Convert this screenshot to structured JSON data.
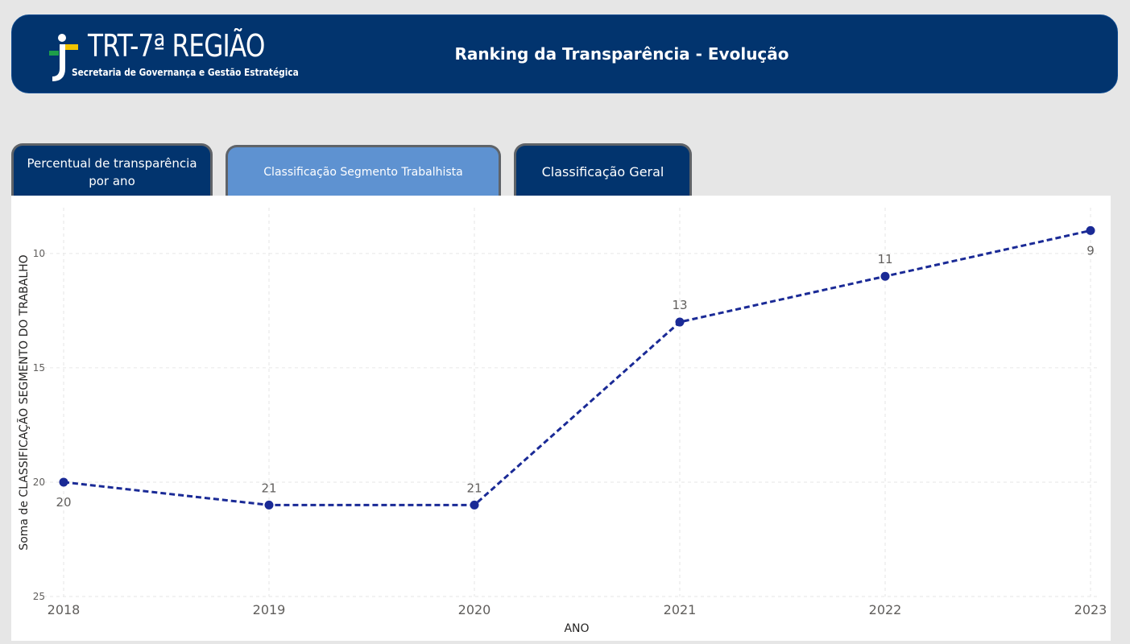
{
  "header": {
    "logo_title": "TRT-7ª REGIÃO",
    "logo_subtitle": "Secretaria de Governança e Gestão Estratégica",
    "title": "Ranking da Transparência - Evolução"
  },
  "tabs": [
    {
      "label": "Percentual de transparência por ano",
      "active": false
    },
    {
      "label": "Classificação Segmento Trabalhista",
      "active": true
    },
    {
      "label": "Classificação Geral",
      "active": false
    }
  ],
  "colors": {
    "header_bg": "#02346e",
    "active_tab": "#5e92d1",
    "series": "#1a2a96",
    "logo_green": "#1e9e4a",
    "logo_yellow": "#f2c400"
  },
  "chart_data": {
    "type": "line",
    "x": [
      "2018",
      "2019",
      "2020",
      "2021",
      "2022",
      "2023"
    ],
    "series": [
      {
        "values": [
          20,
          21,
          21,
          13,
          11,
          9
        ],
        "style": "dashed",
        "markers": true
      }
    ],
    "data_labels": [
      "20",
      "21",
      "21",
      "13",
      "11",
      "9"
    ],
    "xlabel": "ANO",
    "ylabel": "Soma de CLASSIFICAÇÃO SEGMENTO DO TRABALHO",
    "y_ticks": [
      "10",
      "15",
      "20",
      "25"
    ],
    "ylim": [
      25,
      8
    ],
    "y_reversed": true,
    "grid": true
  }
}
